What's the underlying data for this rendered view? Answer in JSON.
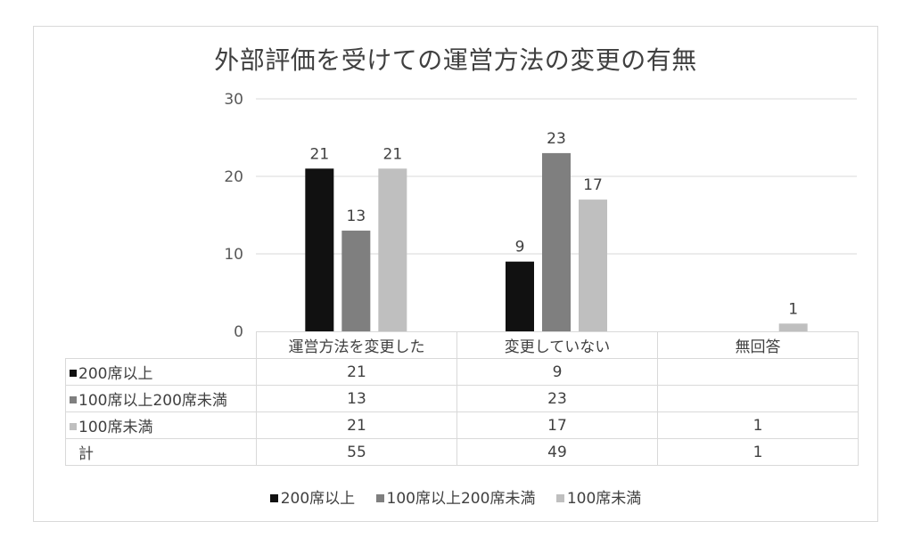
{
  "colors": {
    "s0": "#111111",
    "s1": "#7f7f7f",
    "s2": "#bfbfbf",
    "grid": "#d9d9d9"
  },
  "chart_data": {
    "type": "bar",
    "title": "外部評価を受けての運営方法の変更の有無",
    "categories": [
      "運営方法を変更した",
      "変更していない",
      "無回答"
    ],
    "series": [
      {
        "name": "200席以上",
        "values": [
          21,
          9,
          null
        ]
      },
      {
        "name": "100席以上200席未満",
        "values": [
          13,
          23,
          null
        ]
      },
      {
        "name": "100席未満",
        "values": [
          21,
          17,
          1
        ]
      }
    ],
    "ylim": [
      0,
      30
    ],
    "yticks": [
      0,
      10,
      20,
      30
    ],
    "grid": true,
    "legend": "bottom",
    "data_table": true,
    "total_label": "計",
    "totals": [
      "55",
      "49",
      "1"
    ]
  }
}
